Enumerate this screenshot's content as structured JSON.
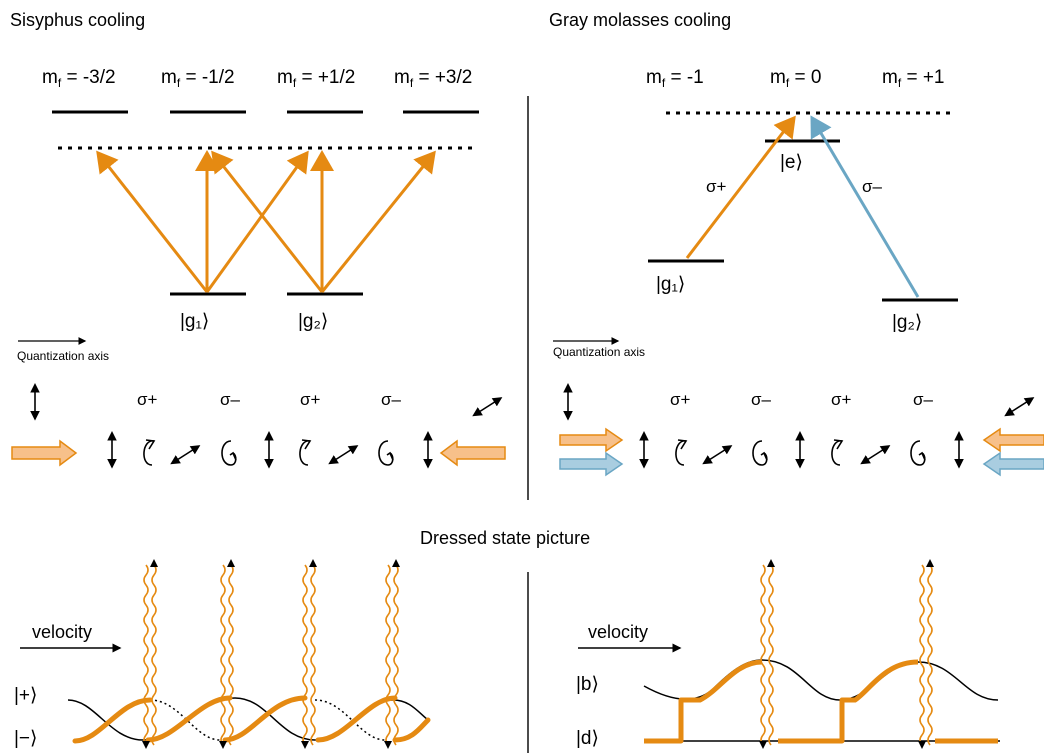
{
  "titles": {
    "sisyphus": "Sisyphus cooling",
    "gray": "Gray molasses cooling",
    "dressed": "Dressed state picture"
  },
  "sisyphus": {
    "levels": [
      "m_f = -3/2",
      "m_f = -1/2",
      "m_f = +1/2",
      "m_f = +3/2"
    ],
    "ground": [
      "|g₁⟩",
      "|g₂⟩"
    ]
  },
  "gray": {
    "levels": [
      "m_f = -1",
      "m_f = 0",
      "m_f = +1"
    ],
    "excited": "|e⟩",
    "ground": [
      "|g₁⟩",
      "|g₂⟩"
    ],
    "sigma_plus": "σ+",
    "sigma_minus": "σ–"
  },
  "quantization_axis": "Quantization axis",
  "polarizations": [
    "σ+",
    "σ–",
    "σ+",
    "σ–"
  ],
  "dressed": {
    "velocity": "velocity",
    "left_states": [
      "|+⟩",
      "|−⟩"
    ],
    "right_states": [
      "|b⟩",
      "|d⟩"
    ]
  },
  "colors": {
    "orange": "#e58a12",
    "blue": "#6aa6c4",
    "orange_fill": "#f7c08a",
    "blue_fill": "#a9cde0"
  }
}
